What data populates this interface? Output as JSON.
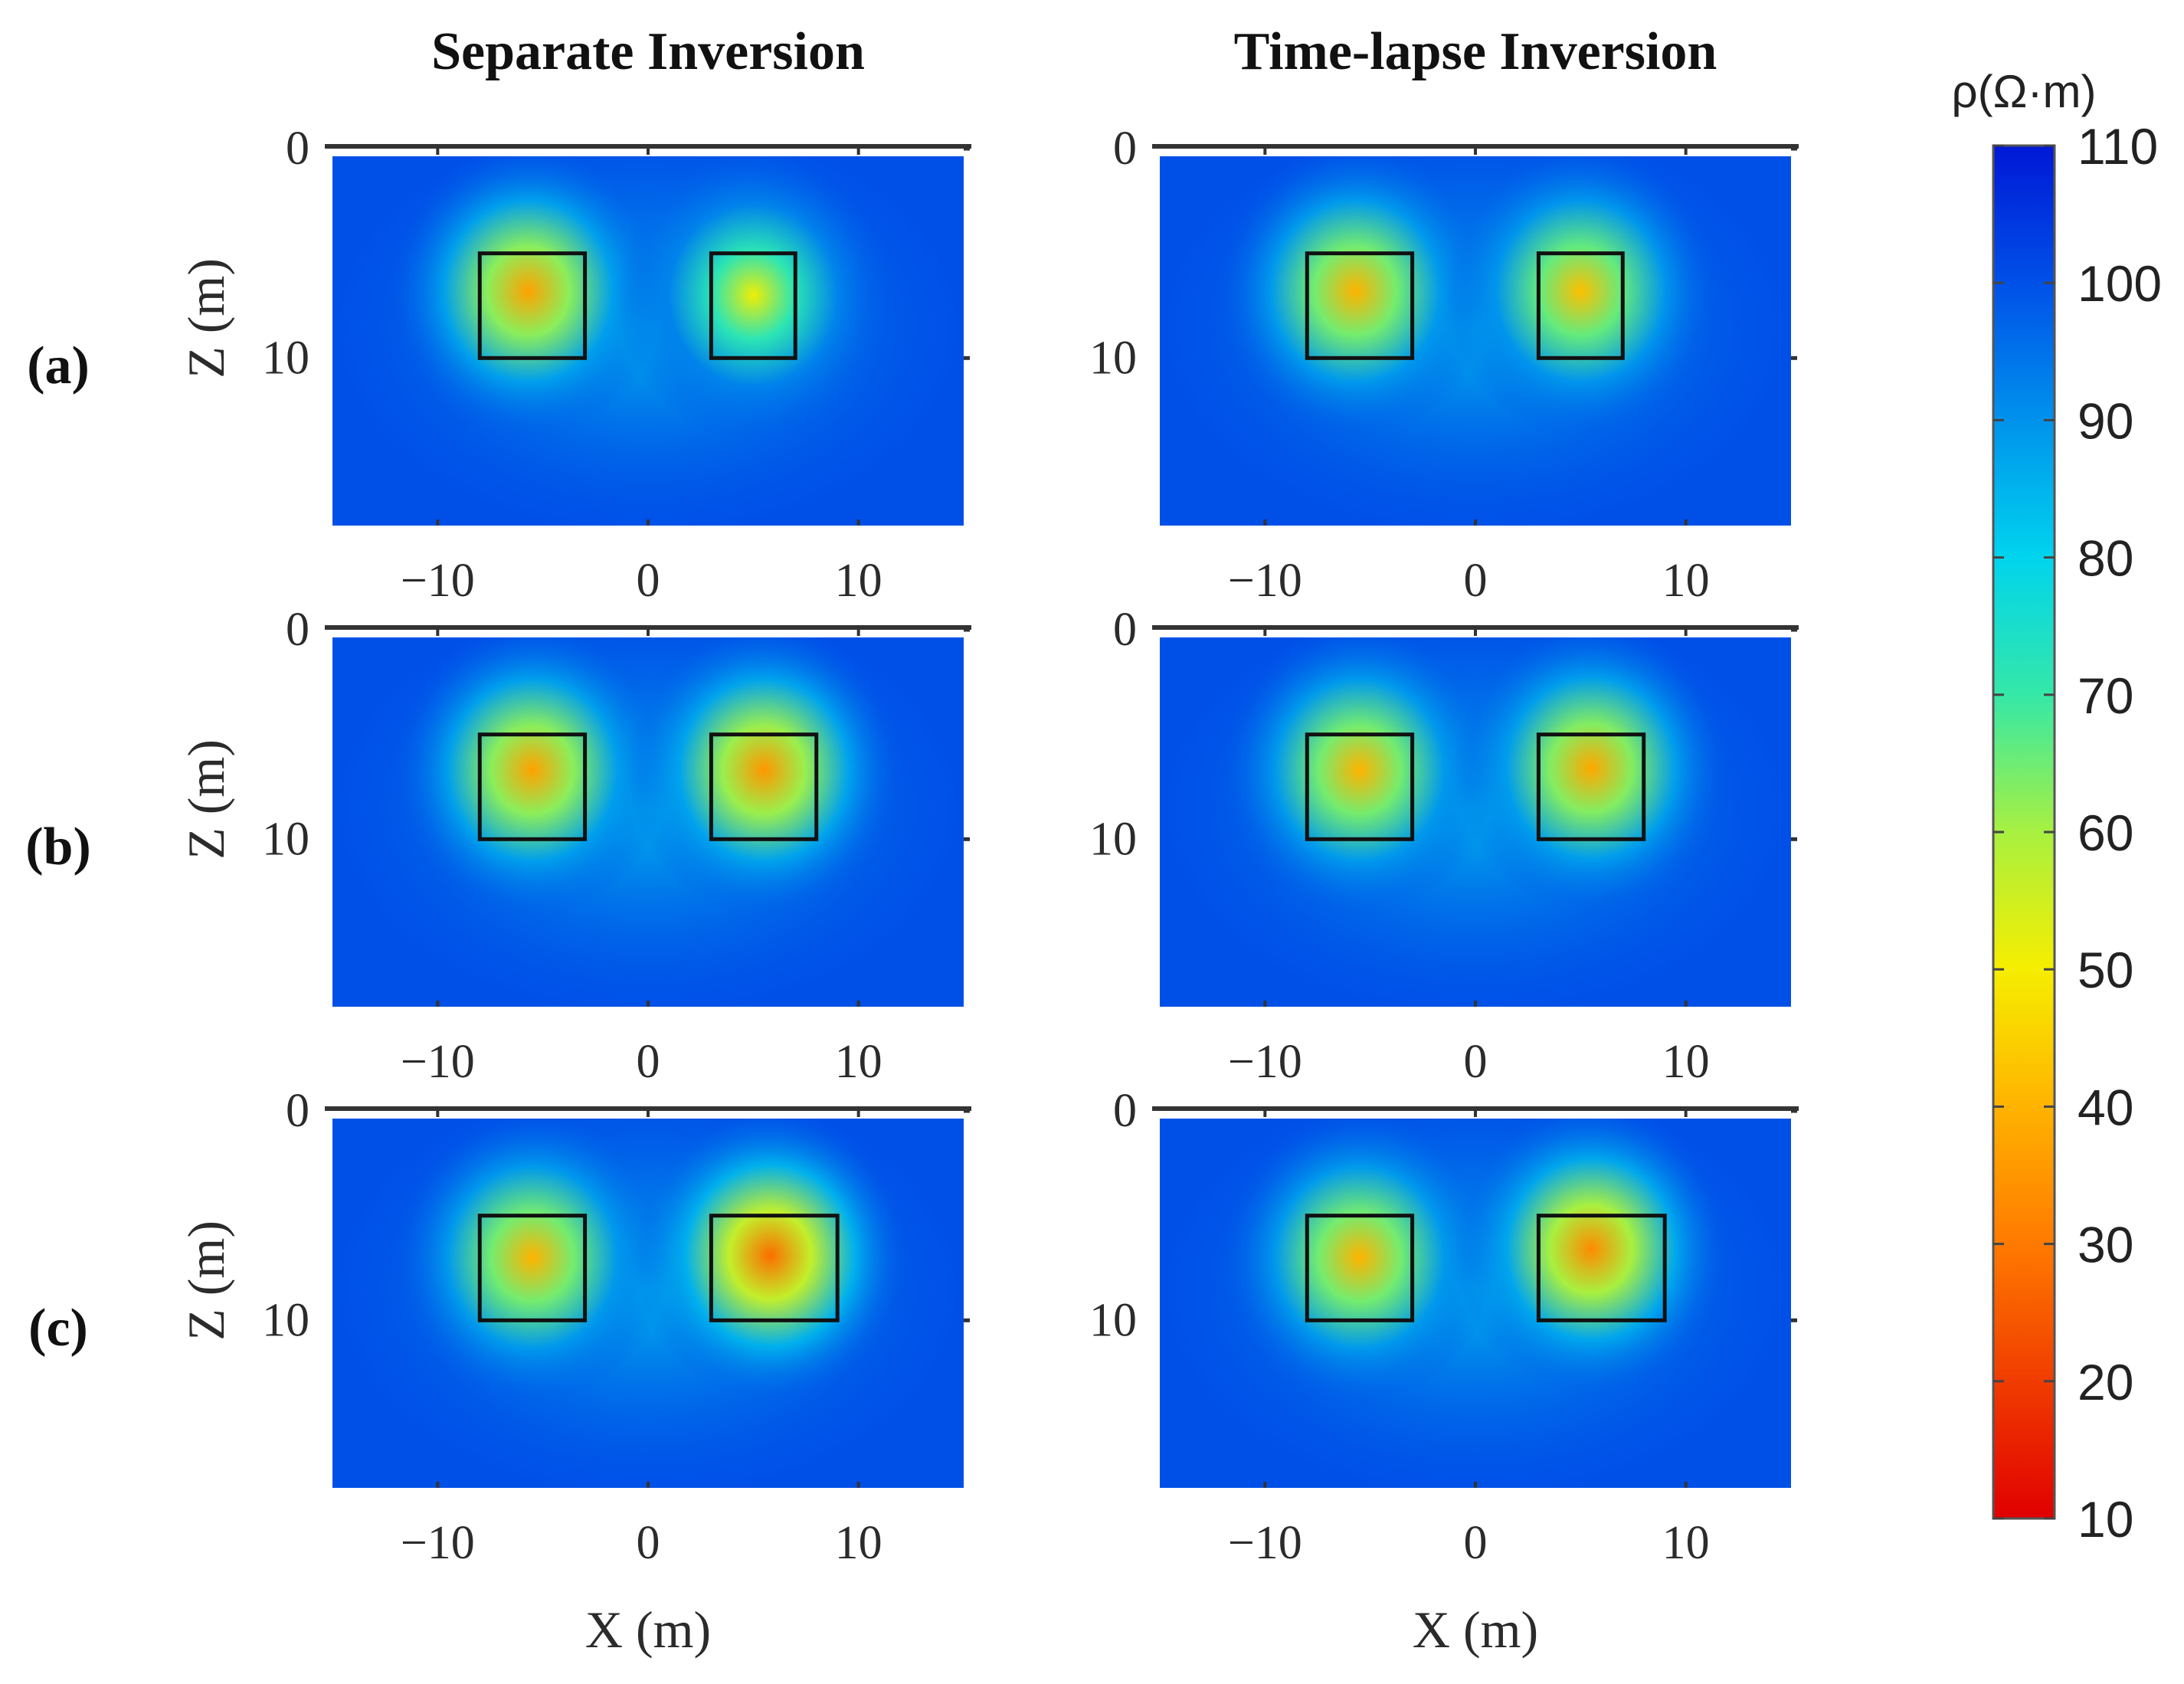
{
  "figure": {
    "column_titles": [
      "Separate Inversion",
      "Time-lapse Inversion"
    ],
    "row_labels": [
      "(a)",
      "(b)",
      "(c)"
    ]
  },
  "colorbar": {
    "label": "ρ(Ω·m)",
    "min": 10,
    "max": 110,
    "ticks": [
      "10",
      "20",
      "30",
      "40",
      "50",
      "60",
      "70",
      "80",
      "90",
      "100",
      "110"
    ],
    "colormap": "jet"
  },
  "chart_data": [
    {
      "type": "heatmap",
      "panel": "a-separate",
      "row": "(a)",
      "column": "Separate Inversion",
      "xlabel": "",
      "ylabel": "Z (m)",
      "xlim": [
        -15,
        15
      ],
      "ylim": [
        0,
        18
      ],
      "xticks": [
        "−10",
        "0",
        "10"
      ],
      "yticks": [
        "0",
        "10"
      ],
      "background_rho": 100,
      "targets": [
        {
          "x": [
            -8,
            -3
          ],
          "z": [
            5,
            10
          ]
        },
        {
          "x": [
            3,
            7
          ],
          "z": [
            5,
            10
          ]
        }
      ],
      "anomalies": [
        {
          "x": -5.7,
          "z": 6.8,
          "min_rho": 37
        },
        {
          "x": 5,
          "z": 7,
          "min_rho": 51
        }
      ]
    },
    {
      "type": "heatmap",
      "panel": "a-timelapse",
      "row": "(a)",
      "column": "Time-lapse Inversion",
      "xlabel": "",
      "ylabel": "",
      "xlim": [
        -15,
        15
      ],
      "ylim": [
        0,
        18
      ],
      "xticks": [
        "−10",
        "0",
        "10"
      ],
      "yticks": [
        "0",
        "10"
      ],
      "background_rho": 100,
      "targets": [
        {
          "x": [
            -8,
            -3
          ],
          "z": [
            5,
            10
          ]
        },
        {
          "x": [
            3,
            7
          ],
          "z": [
            5,
            10
          ]
        }
      ],
      "anomalies": [
        {
          "x": -5.7,
          "z": 6.8,
          "min_rho": 40
        },
        {
          "x": 5,
          "z": 6.8,
          "min_rho": 42
        }
      ]
    },
    {
      "type": "heatmap",
      "panel": "b-separate",
      "row": "(b)",
      "column": "Separate Inversion",
      "xlabel": "",
      "ylabel": "Z (m)",
      "xlim": [
        -15,
        15
      ],
      "ylim": [
        0,
        18
      ],
      "xticks": [
        "−10",
        "0",
        "10"
      ],
      "yticks": [
        "0",
        "10"
      ],
      "background_rho": 100,
      "targets": [
        {
          "x": [
            -8,
            -3
          ],
          "z": [
            5,
            10
          ]
        },
        {
          "x": [
            3,
            8
          ],
          "z": [
            5,
            10
          ]
        }
      ],
      "anomalies": [
        {
          "x": -5.5,
          "z": 6.7,
          "min_rho": 37
        },
        {
          "x": 5.5,
          "z": 6.7,
          "min_rho": 35
        }
      ]
    },
    {
      "type": "heatmap",
      "panel": "b-timelapse",
      "row": "(b)",
      "column": "Time-lapse Inversion",
      "xlabel": "",
      "ylabel": "",
      "xlim": [
        -15,
        15
      ],
      "ylim": [
        0,
        18
      ],
      "xticks": [
        "−10",
        "0",
        "10"
      ],
      "yticks": [
        "0",
        "10"
      ],
      "background_rho": 100,
      "targets": [
        {
          "x": [
            -8,
            -3
          ],
          "z": [
            5,
            10
          ]
        },
        {
          "x": [
            3,
            8
          ],
          "z": [
            5,
            10
          ]
        }
      ],
      "anomalies": [
        {
          "x": -5.5,
          "z": 6.7,
          "min_rho": 40
        },
        {
          "x": 5.5,
          "z": 6.6,
          "min_rho": 38
        }
      ]
    },
    {
      "type": "heatmap",
      "panel": "c-separate",
      "row": "(c)",
      "column": "Separate Inversion",
      "xlabel": "X (m)",
      "ylabel": "Z (m)",
      "xlim": [
        -15,
        15
      ],
      "ylim": [
        0,
        18
      ],
      "xticks": [
        "−10",
        "0",
        "10"
      ],
      "yticks": [
        "0",
        "10"
      ],
      "background_rho": 100,
      "targets": [
        {
          "x": [
            -8,
            -3
          ],
          "z": [
            5,
            10
          ]
        },
        {
          "x": [
            3,
            9
          ],
          "z": [
            5,
            10
          ]
        }
      ],
      "anomalies": [
        {
          "x": -5.5,
          "z": 7,
          "min_rho": 40
        },
        {
          "x": 5.8,
          "z": 6.9,
          "min_rho": 28
        }
      ]
    },
    {
      "type": "heatmap",
      "panel": "c-timelapse",
      "row": "(c)",
      "column": "Time-lapse Inversion",
      "xlabel": "X (m)",
      "ylabel": "",
      "xlim": [
        -15,
        15
      ],
      "ylim": [
        0,
        18
      ],
      "xticks": [
        "−10",
        "0",
        "10"
      ],
      "yticks": [
        "0",
        "10"
      ],
      "background_rho": 100,
      "targets": [
        {
          "x": [
            -8,
            -3
          ],
          "z": [
            5,
            10
          ]
        },
        {
          "x": [
            3,
            9
          ],
          "z": [
            5,
            10
          ]
        }
      ],
      "anomalies": [
        {
          "x": -5.5,
          "z": 7,
          "min_rho": 40
        },
        {
          "x": 5.5,
          "z": 6.6,
          "min_rho": 33
        }
      ]
    }
  ]
}
